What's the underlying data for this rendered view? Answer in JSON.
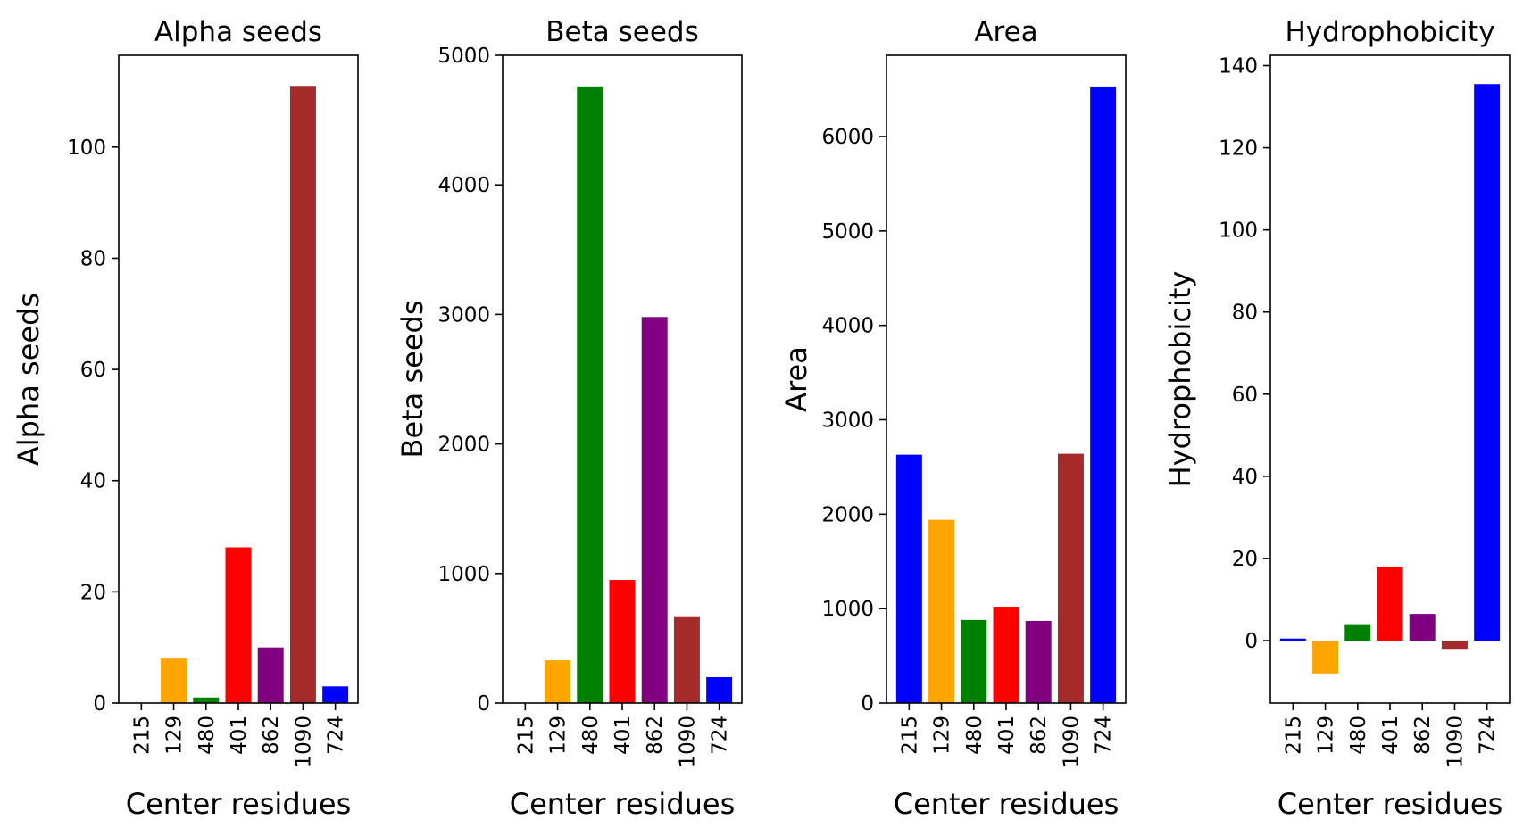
{
  "chart_data": [
    {
      "type": "bar",
      "title": "Alpha seeds",
      "xlabel": "Center residues",
      "ylabel": "Alpha seeds",
      "categories": [
        "215",
        "129",
        "480",
        "401",
        "862",
        "1090",
        "724"
      ],
      "values": [
        0,
        8,
        1,
        28,
        10,
        111,
        3
      ],
      "colors": [
        "#0000ff",
        "#ffa500",
        "#008000",
        "#ff0000",
        "#800080",
        "#a52a2a",
        "#0000ff"
      ],
      "ylim": [
        0,
        116.5
      ],
      "yticks": [
        0,
        20,
        40,
        60,
        80,
        100
      ],
      "grid": false
    },
    {
      "type": "bar",
      "title": "Beta seeds",
      "xlabel": "Center residues",
      "ylabel": "Beta seeds",
      "categories": [
        "215",
        "129",
        "480",
        "401",
        "862",
        "1090",
        "724"
      ],
      "values": [
        0,
        330,
        4760,
        950,
        2980,
        670,
        200
      ],
      "colors": [
        "#0000ff",
        "#ffa500",
        "#008000",
        "#ff0000",
        "#800080",
        "#a52a2a",
        "#0000ff"
      ],
      "ylim": [
        0,
        5000
      ],
      "yticks": [
        0,
        1000,
        2000,
        3000,
        4000,
        5000
      ],
      "grid": false
    },
    {
      "type": "bar",
      "title": "Area",
      "xlabel": "Center residues",
      "ylabel": "Area",
      "categories": [
        "215",
        "129",
        "480",
        "401",
        "862",
        "1090",
        "724"
      ],
      "values": [
        2630,
        1940,
        880,
        1020,
        870,
        2640,
        6530
      ],
      "colors": [
        "#0000ff",
        "#ffa500",
        "#008000",
        "#ff0000",
        "#800080",
        "#a52a2a",
        "#0000ff"
      ],
      "ylim": [
        0,
        6860
      ],
      "yticks": [
        0,
        1000,
        2000,
        3000,
        4000,
        5000,
        6000
      ],
      "grid": false
    },
    {
      "type": "bar",
      "title": "Hydrophobicity",
      "xlabel": "Center residues",
      "ylabel": "Hydrophobicity",
      "categories": [
        "215",
        "129",
        "480",
        "401",
        "862",
        "1090",
        "724"
      ],
      "values": [
        0.5,
        -8,
        4,
        18,
        6.5,
        -2,
        135.5
      ],
      "colors": [
        "#0000ff",
        "#ffa500",
        "#008000",
        "#ff0000",
        "#800080",
        "#a52a2a",
        "#0000ff"
      ],
      "ylim": [
        -15.2,
        142.5
      ],
      "yticks": [
        0,
        20,
        40,
        60,
        80,
        100,
        120,
        140
      ],
      "grid": false
    }
  ]
}
